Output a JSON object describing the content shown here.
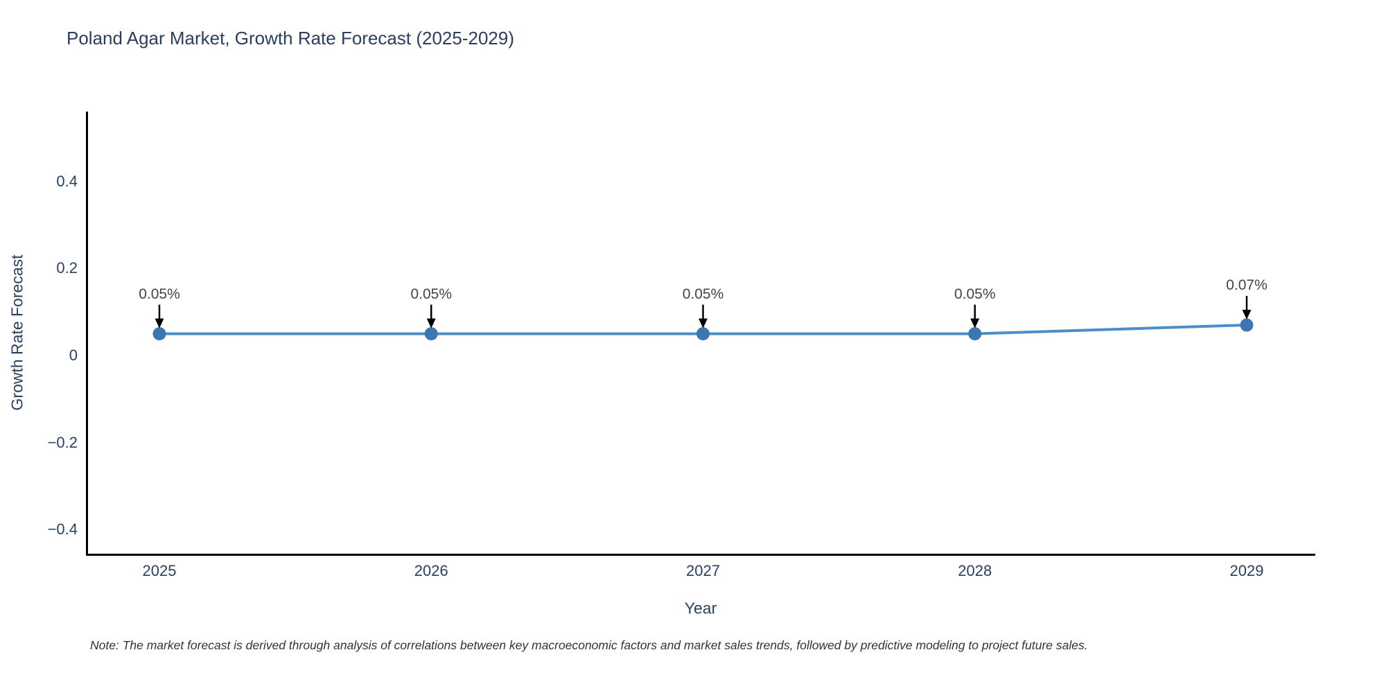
{
  "title": "Poland Agar Market, Growth Rate Forecast (2025-2029)",
  "note": "Note: The market forecast is derived through analysis of correlations between key macroeconomic factors and market sales trends, followed by predictive modeling to project future sales.",
  "colors": {
    "line": "#4a8fc7",
    "marker": "#3d76b3",
    "arrow": "#000000",
    "axis_line": "#000000",
    "title_text": "#2a3f5f",
    "axis_text": "#2a3f5f",
    "annotation_text": "#444444",
    "background": "#ffffff"
  },
  "chart_data": {
    "type": "line",
    "title": "Poland Agar Market, Growth Rate Forecast (2025-2029)",
    "xlabel": "Year",
    "ylabel": "Growth Rate Forecast",
    "categories": [
      "2025",
      "2026",
      "2027",
      "2028",
      "2029"
    ],
    "values": [
      0.05,
      0.05,
      0.05,
      0.05,
      0.07
    ],
    "point_labels": [
      "0.05%",
      "0.05%",
      "0.05%",
      "0.05%",
      "0.07%"
    ],
    "y_ticks": [
      0.4,
      0.2,
      0,
      -0.2,
      -0.4
    ],
    "y_tick_labels": [
      "0.4",
      "0.2",
      "0",
      "−0.2",
      "−0.4"
    ],
    "ylim": [
      -0.46,
      0.56
    ],
    "grid": false,
    "legend_position": "none",
    "annotations_have_arrows": true
  }
}
